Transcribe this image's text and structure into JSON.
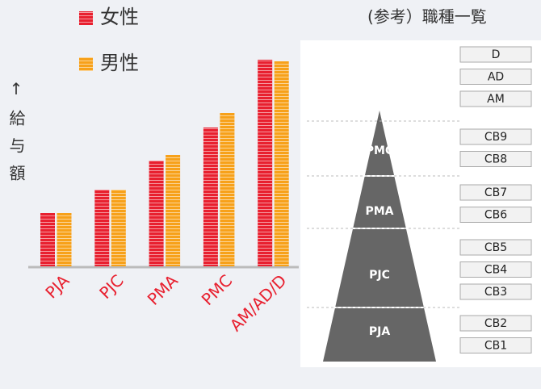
{
  "chart_data": {
    "type": "bar",
    "y_label": "↑給与額",
    "categories": [
      "PJA",
      "PJC",
      "PMA",
      "PMC",
      "AM/AD/D"
    ],
    "series": [
      {
        "name": "女性",
        "color": "#e8202f",
        "values": [
          66,
          95,
          131,
          172,
          256
        ]
      },
      {
        "name": "男性",
        "color": "#f7a11a",
        "values": [
          66,
          95,
          138,
          190,
          254
        ]
      }
    ],
    "ylim": [
      0,
      270
    ]
  },
  "reference": {
    "title": "(参考）職種一覧",
    "pyramid_labels": [
      "PMC",
      "PMA",
      "PJC",
      "PJA"
    ],
    "grade_groups": [
      [
        "D",
        "AD",
        "AM"
      ],
      [
        "CB9",
        "CB8"
      ],
      [
        "CB7",
        "CB6"
      ],
      [
        "CB5",
        "CB4",
        "CB3"
      ],
      [
        "CB2",
        "CB1"
      ]
    ]
  }
}
